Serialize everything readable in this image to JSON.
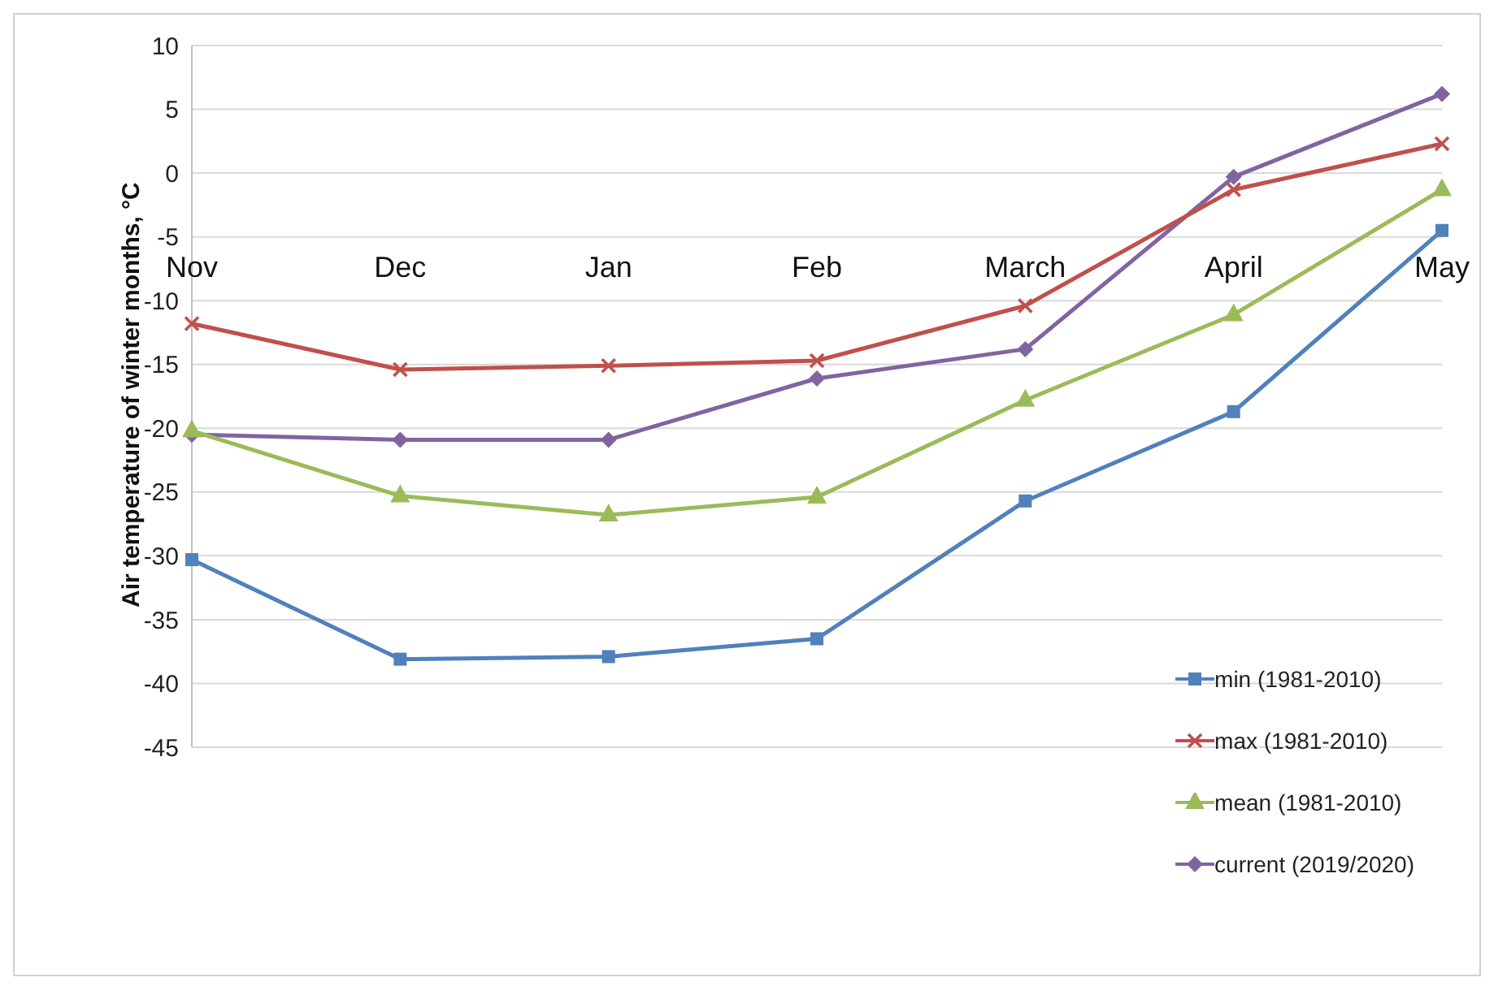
{
  "chart_data": {
    "type": "line",
    "ylabel": "Air temperature of winter months, °C",
    "categories": [
      "Nov",
      "Dec",
      "Jan",
      "Feb",
      "March",
      "April",
      "May"
    ],
    "ylim": [
      -45,
      10
    ],
    "yticks": [
      -45,
      -40,
      -35,
      -30,
      -25,
      -20,
      -15,
      -10,
      -5,
      0,
      5,
      10
    ],
    "grid": "y",
    "legend": "bottom right",
    "series": [
      {
        "name": "min (1981-2010)",
        "color": "#4f81bd",
        "marker": "square",
        "values": [
          -30.3,
          -38.1,
          -37.9,
          -36.5,
          -25.7,
          -18.7,
          -4.5
        ]
      },
      {
        "name": "max (1981-2010)",
        "color": "#c0504d",
        "marker": "cross",
        "values": [
          -11.8,
          -15.4,
          -15.1,
          -14.7,
          -10.4,
          -1.3,
          2.3
        ]
      },
      {
        "name": "mean (1981-2010)",
        "color": "#9bbb59",
        "marker": "triangle",
        "values": [
          -20.2,
          -25.3,
          -26.8,
          -25.4,
          -17.8,
          -11.1,
          -1.3
        ]
      },
      {
        "name": "current (2019/2020)",
        "color": "#8064a2",
        "marker": "diamond",
        "values": [
          -20.5,
          -20.9,
          -20.9,
          -16.1,
          -13.8,
          -0.3,
          6.2
        ]
      }
    ]
  }
}
